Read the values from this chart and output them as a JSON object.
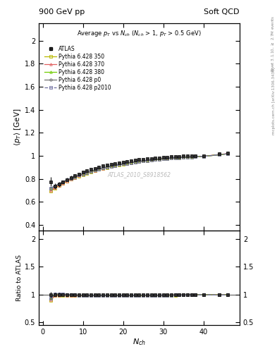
{
  "title_left": "900 GeV pp",
  "title_right": "Soft QCD",
  "plot_title": "Average $p_T$ vs $N_{ch}$ ($N_{ch}$ > 1, $p_T$ > 0.5 GeV)",
  "xlabel": "$N_{ch}$",
  "ylabel_main": "$\\langle p_T \\rangle$ [GeV]",
  "ylabel_ratio": "Ratio to ATLAS",
  "watermark": "ATLAS_2010_S8918562",
  "ylim_main": [
    0.35,
    2.15
  ],
  "ylim_ratio": [
    0.45,
    2.15
  ],
  "xlim": [
    -1,
    49
  ],
  "yticks_main": [
    0.4,
    0.6,
    0.8,
    1.0,
    1.2,
    1.4,
    1.6,
    1.8,
    2.0
  ],
  "yticks_ratio": [
    0.5,
    1.0,
    1.5,
    2.0
  ],
  "nch_atlas": [
    2,
    3,
    4,
    5,
    6,
    7,
    8,
    9,
    10,
    11,
    12,
    13,
    14,
    15,
    16,
    17,
    18,
    19,
    20,
    21,
    22,
    23,
    24,
    25,
    26,
    27,
    28,
    29,
    30,
    31,
    32,
    33,
    34,
    35,
    36,
    37,
    38,
    40,
    44,
    46
  ],
  "avgpt_atlas": [
    0.775,
    0.735,
    0.753,
    0.771,
    0.793,
    0.812,
    0.828,
    0.843,
    0.857,
    0.87,
    0.882,
    0.893,
    0.903,
    0.912,
    0.92,
    0.928,
    0.935,
    0.942,
    0.947,
    0.953,
    0.958,
    0.963,
    0.967,
    0.971,
    0.975,
    0.978,
    0.982,
    0.985,
    0.988,
    0.99,
    0.992,
    0.994,
    0.996,
    0.998,
    0.999,
    1.0,
    1.001,
    1.002,
    1.02,
    1.025
  ],
  "err_atlas": [
    0.04,
    0.025,
    0.02,
    0.018,
    0.016,
    0.014,
    0.013,
    0.012,
    0.011,
    0.01,
    0.01,
    0.009,
    0.009,
    0.008,
    0.008,
    0.008,
    0.007,
    0.007,
    0.007,
    0.007,
    0.006,
    0.006,
    0.006,
    0.006,
    0.006,
    0.006,
    0.006,
    0.006,
    0.006,
    0.005,
    0.005,
    0.005,
    0.005,
    0.005,
    0.005,
    0.005,
    0.005,
    0.005,
    0.01,
    0.012
  ],
  "nch_mc": [
    2,
    3,
    4,
    5,
    6,
    7,
    8,
    9,
    10,
    11,
    12,
    13,
    14,
    15,
    16,
    17,
    18,
    19,
    20,
    21,
    22,
    23,
    24,
    25,
    26,
    27,
    28,
    29,
    30,
    31,
    32,
    33,
    34,
    35,
    36,
    37,
    38,
    40,
    44,
    46
  ],
  "avgpt_350": [
    0.695,
    0.718,
    0.741,
    0.761,
    0.779,
    0.796,
    0.811,
    0.825,
    0.838,
    0.85,
    0.861,
    0.872,
    0.882,
    0.891,
    0.899,
    0.907,
    0.915,
    0.922,
    0.928,
    0.934,
    0.94,
    0.945,
    0.95,
    0.955,
    0.959,
    0.963,
    0.967,
    0.971,
    0.974,
    0.977,
    0.98,
    0.982,
    0.985,
    0.987,
    0.989,
    0.991,
    0.993,
    0.996,
    1.01,
    1.018
  ],
  "avgpt_370": [
    0.7,
    0.722,
    0.744,
    0.764,
    0.781,
    0.798,
    0.813,
    0.827,
    0.84,
    0.852,
    0.863,
    0.874,
    0.884,
    0.893,
    0.901,
    0.909,
    0.917,
    0.924,
    0.93,
    0.936,
    0.942,
    0.947,
    0.952,
    0.957,
    0.961,
    0.965,
    0.969,
    0.972,
    0.976,
    0.979,
    0.981,
    0.984,
    0.986,
    0.988,
    0.99,
    0.992,
    0.994,
    0.997,
    1.012,
    1.02
  ],
  "avgpt_380": [
    0.72,
    0.738,
    0.757,
    0.775,
    0.791,
    0.806,
    0.82,
    0.833,
    0.845,
    0.857,
    0.867,
    0.877,
    0.887,
    0.896,
    0.904,
    0.911,
    0.919,
    0.925,
    0.932,
    0.937,
    0.943,
    0.948,
    0.952,
    0.957,
    0.961,
    0.965,
    0.968,
    0.972,
    0.975,
    0.978,
    0.98,
    0.983,
    0.985,
    0.987,
    0.989,
    0.991,
    0.993,
    0.996,
    1.01,
    1.018
  ],
  "avgpt_p0": [
    0.72,
    0.74,
    0.758,
    0.775,
    0.791,
    0.806,
    0.819,
    0.832,
    0.844,
    0.855,
    0.866,
    0.876,
    0.885,
    0.894,
    0.902,
    0.91,
    0.917,
    0.924,
    0.93,
    0.936,
    0.942,
    0.947,
    0.952,
    0.956,
    0.961,
    0.965,
    0.968,
    0.972,
    0.975,
    0.978,
    0.981,
    0.983,
    0.986,
    0.988,
    0.99,
    0.992,
    0.993,
    0.996,
    1.01,
    1.018
  ],
  "avgpt_p2010": [
    0.718,
    0.738,
    0.757,
    0.774,
    0.79,
    0.805,
    0.819,
    0.832,
    0.844,
    0.855,
    0.866,
    0.876,
    0.885,
    0.894,
    0.902,
    0.91,
    0.917,
    0.924,
    0.93,
    0.936,
    0.942,
    0.947,
    0.952,
    0.956,
    0.96,
    0.964,
    0.968,
    0.971,
    0.975,
    0.978,
    0.98,
    0.983,
    0.985,
    0.987,
    0.989,
    0.991,
    0.993,
    0.996,
    1.01,
    1.018
  ],
  "color_350": "#b8b800",
  "color_370": "#e06060",
  "color_380": "#70cc00",
  "color_p0": "#707070",
  "color_p2010": "#7070a0",
  "band_color": "#d0e050",
  "atlas_color": "#000000",
  "atlas_face": "#303030"
}
